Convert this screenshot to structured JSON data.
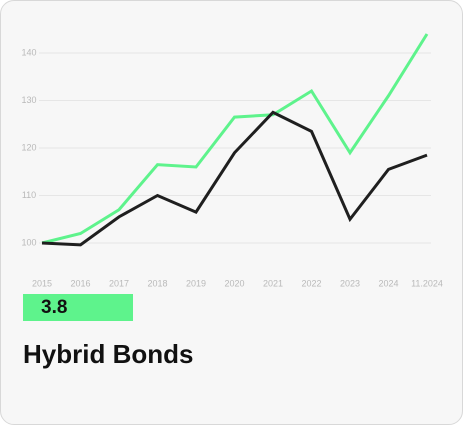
{
  "chart_data": {
    "type": "line",
    "categories": [
      "2015",
      "2016",
      "2017",
      "2018",
      "2019",
      "2020",
      "2021",
      "2022",
      "2023",
      "2024",
      "11.2024"
    ],
    "series": [
      {
        "color": "#5ef38c",
        "values": [
          100,
          102,
          107,
          116.5,
          116,
          126.5,
          127,
          132,
          119,
          131,
          144
        ]
      },
      {
        "color": "#1f1f1f",
        "values": [
          100,
          99.6,
          105.5,
          110,
          106.5,
          119,
          127.5,
          123.5,
          105,
          115.5,
          118.5
        ]
      }
    ],
    "ylim": [
      95,
      145
    ],
    "yticks": [
      100,
      110,
      120,
      130,
      140
    ],
    "grid": true
  },
  "value_badge": "3.8",
  "name": "Hybrid Bonds"
}
